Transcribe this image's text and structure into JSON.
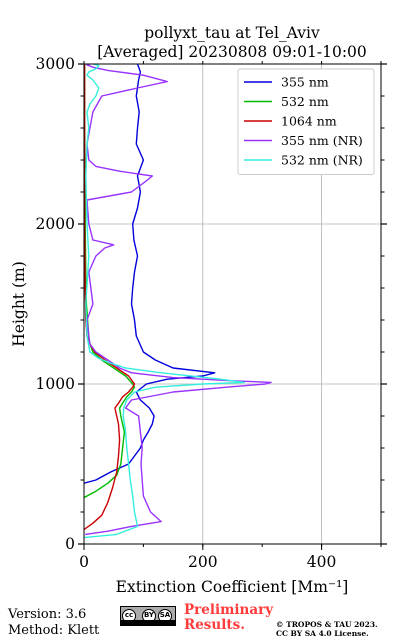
{
  "chart_data": {
    "type": "line",
    "title": "pollyxt_tau at Tel_Aviv",
    "subtitle": "[Averaged] 20230808 09:01-10:00",
    "xlabel": "Extinction Coefficient [Mm⁻¹]",
    "ylabel": "Height (m)",
    "xlim": [
      0,
      500
    ],
    "ylim": [
      0,
      3000
    ],
    "xticks": [
      0,
      200,
      400
    ],
    "yticks": [
      0,
      1000,
      2000,
      3000
    ],
    "grid": true,
    "legend_position": "top-right",
    "series": [
      {
        "name": "355 nm",
        "color": "#0000dd",
        "x": [
          0,
          20,
          45,
          75,
          95,
          100,
          108,
          115,
          118,
          110,
          95,
          88,
          105,
          140,
          200,
          220,
          150,
          120,
          100,
          88,
          85,
          80,
          82,
          85,
          90,
          84,
          82,
          90,
          95,
          90,
          100,
          88,
          90,
          93,
          88,
          92,
          95,
          90
        ],
        "y": [
          380,
          400,
          450,
          500,
          600,
          650,
          700,
          750,
          800,
          850,
          900,
          950,
          1000,
          1030,
          1050,
          1070,
          1100,
          1150,
          1200,
          1300,
          1400,
          1500,
          1600,
          1700,
          1800,
          1900,
          2000,
          2100,
          2200,
          2300,
          2400,
          2500,
          2600,
          2700,
          2800,
          2900,
          2950,
          3000
        ]
      },
      {
        "name": "532 nm",
        "color": "#00bb00",
        "x": [
          0,
          20,
          40,
          55,
          62,
          65,
          68,
          65,
          62,
          60,
          65,
          72,
          80,
          85,
          82,
          70,
          50,
          30,
          15,
          10,
          8,
          6,
          4,
          3,
          2,
          2,
          1,
          1
        ],
        "y": [
          290,
          330,
          380,
          430,
          500,
          600,
          700,
          750,
          800,
          850,
          880,
          920,
          950,
          980,
          1000,
          1050,
          1100,
          1150,
          1200,
          1250,
          1300,
          1400,
          1500,
          1700,
          2000,
          2300,
          2600,
          3000
        ]
      },
      {
        "name": "1064 nm",
        "color": "#cc0000",
        "x": [
          0,
          15,
          30,
          40,
          48,
          55,
          58,
          60,
          58,
          55,
          52,
          58,
          65,
          75,
          82,
          85,
          75,
          55,
          35,
          18,
          10,
          5,
          3,
          2,
          1,
          1
        ],
        "y": [
          90,
          130,
          180,
          260,
          350,
          450,
          550,
          650,
          750,
          800,
          850,
          880,
          920,
          950,
          980,
          1000,
          1050,
          1100,
          1150,
          1200,
          1250,
          1300,
          1400,
          1600,
          2000,
          3000
        ]
      },
      {
        "name": "355 nm (NR)",
        "color": "#9933ff",
        "x": [
          2,
          40,
          80,
          130,
          112,
          100,
          98,
          96,
          98,
          95,
          92,
          70,
          80,
          150,
          240,
          305,
          315,
          250,
          150,
          80,
          60,
          40,
          20,
          10,
          8,
          5,
          15,
          8,
          20,
          35,
          50,
          15,
          8,
          5,
          80,
          105,
          115,
          60,
          20,
          8,
          5,
          10,
          15,
          30,
          90,
          140,
          100,
          40,
          15,
          5,
          10
        ],
        "y": [
          60,
          80,
          110,
          140,
          200,
          300,
          400,
          500,
          600,
          700,
          800,
          850,
          900,
          950,
          980,
          1000,
          1010,
          1020,
          1040,
          1070,
          1100,
          1150,
          1200,
          1250,
          1300,
          1400,
          1500,
          1700,
          1800,
          1850,
          1870,
          1900,
          2000,
          2150,
          2200,
          2270,
          2300,
          2330,
          2360,
          2400,
          2500,
          2600,
          2700,
          2800,
          2850,
          2890,
          2930,
          2960,
          2980,
          2995,
          3000
        ]
      },
      {
        "name": "532 nm (NR)",
        "color": "#33eedd",
        "x": [
          0,
          55,
          90,
          85,
          82,
          78,
          75,
          72,
          70,
          68,
          66,
          67,
          72,
          85,
          120,
          200,
          270,
          230,
          130,
          70,
          45,
          25,
          10,
          5,
          3,
          8,
          5,
          3,
          5,
          8,
          5,
          10,
          20,
          25,
          15,
          5,
          8,
          20,
          25,
          15
        ],
        "y": [
          40,
          60,
          110,
          200,
          300,
          400,
          500,
          600,
          700,
          750,
          800,
          850,
          900,
          950,
          980,
          1000,
          1010,
          1030,
          1070,
          1100,
          1130,
          1160,
          1200,
          1300,
          1500,
          1800,
          2000,
          2300,
          2500,
          2600,
          2700,
          2750,
          2800,
          2850,
          2900,
          2930,
          2950,
          2970,
          2990,
          3000
        ]
      }
    ]
  },
  "footer": {
    "version": "Version: 3.6",
    "method": "Method: Klett",
    "preliminary_line1": "Preliminary",
    "preliminary_line2": "Results.",
    "copyright_line1": "© TROPOS & TAU 2023.",
    "copyright_line2": "CC BY SA 4.0 License."
  },
  "license_badge": {
    "cc": "cc",
    "by": "BY",
    "sa": "SA"
  }
}
